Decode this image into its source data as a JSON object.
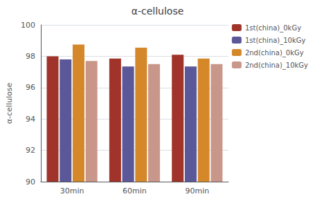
{
  "chart_data": {
    "type": "bar",
    "title": "α-cellulose",
    "ylabel": "α-cellulose",
    "categories": [
      "30min",
      "60min",
      "90min"
    ],
    "series": [
      {
        "name": "1st(china)_0kGy",
        "color": "#A0342A",
        "values": [
          98.0,
          97.85,
          98.1
        ]
      },
      {
        "name": "1st(china)_10kGy",
        "color": "#5A5899",
        "values": [
          97.8,
          97.35,
          97.35
        ]
      },
      {
        "name": "2nd(china)_0kGy",
        "color": "#D4882A",
        "values": [
          98.75,
          98.55,
          97.85
        ]
      },
      {
        "name": "2nd(china)_10kGy",
        "color": "#C9978A",
        "values": [
          97.7,
          97.5,
          97.5
        ]
      }
    ],
    "ylim": [
      90,
      100
    ],
    "yticks": [
      90,
      92,
      94,
      96,
      98,
      100
    ],
    "grid": true,
    "legend": "upper right"
  }
}
